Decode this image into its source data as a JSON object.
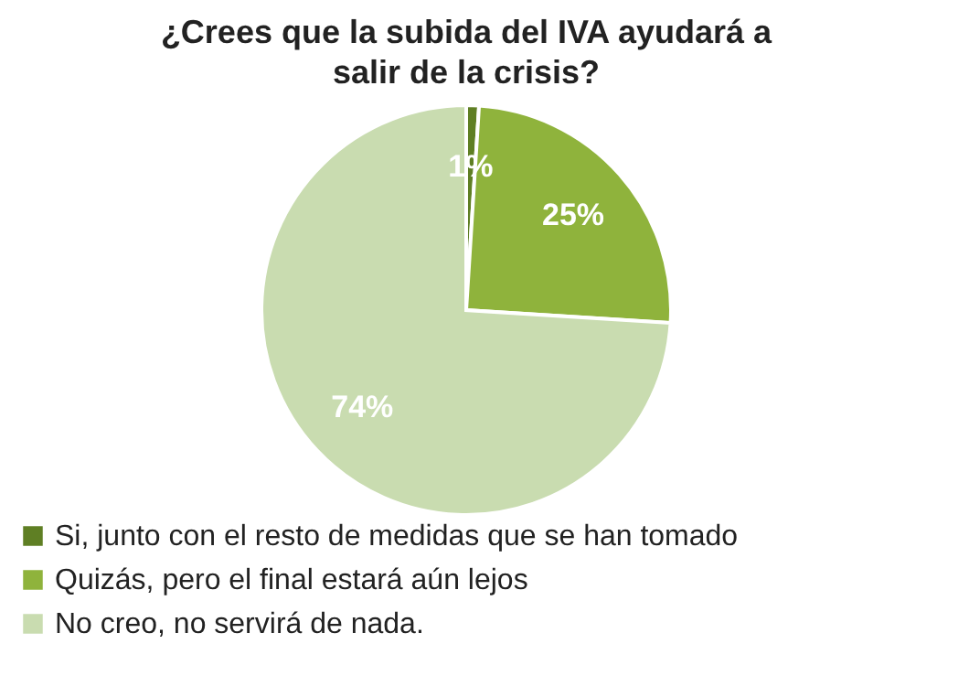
{
  "chart_data": {
    "type": "pie",
    "title": "¿Crees que la subida del IVA ayudará a salir de la crisis?",
    "categories": [
      "Si, junto con el resto de medidas que se han tomado",
      "Quizás, pero el final estará aún lejos",
      "No creo, no servirá de nada."
    ],
    "values": [
      1,
      25,
      74
    ],
    "colors": [
      "#5f7f24",
      "#8fb33c",
      "#c9dcb0"
    ],
    "value_labels": [
      "1%",
      "25%",
      "74%"
    ],
    "legend": "bottom"
  }
}
